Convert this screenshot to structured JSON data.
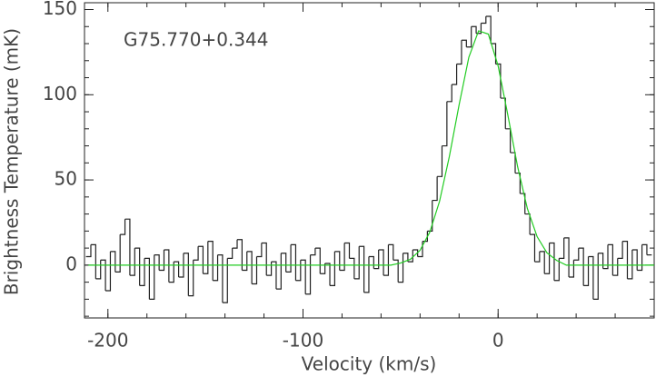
{
  "chart_data": {
    "type": "step",
    "xlabel": "Velocity (km/s)",
    "ylabel": "Brightness Temperature (mK)",
    "annotation": "G75.770+0.344",
    "xlim": [
      -212,
      80
    ],
    "ylim": [
      -31,
      154
    ],
    "xticks": [
      -200,
      -100,
      0
    ],
    "yticks": [
      0,
      50,
      100,
      150
    ],
    "xminorticks": [
      -200,
      -180,
      -160,
      -140,
      -120,
      -100,
      -80,
      -60,
      -40,
      -20,
      0,
      20,
      40,
      60,
      80
    ],
    "yminorticks": [
      -30,
      -20,
      -10,
      0,
      10,
      20,
      30,
      40,
      50,
      60,
      70,
      80,
      90,
      100,
      110,
      120,
      130,
      140,
      150
    ],
    "series": [
      {
        "color": "#222222",
        "x": [
          -210,
          -207.5,
          -205,
          -202.5,
          -200,
          -197.5,
          -195,
          -192.5,
          -190,
          -187.5,
          -185,
          -182.5,
          -180,
          -177.5,
          -175,
          -172.5,
          -170,
          -167.5,
          -165,
          -162.5,
          -160,
          -157.5,
          -155,
          -152.5,
          -150,
          -147.5,
          -145,
          -142.5,
          -140,
          -137.5,
          -135,
          -132.5,
          -130,
          -127.5,
          -125,
          -122.5,
          -120,
          -117.5,
          -115,
          -112.5,
          -110,
          -107.5,
          -105,
          -102.5,
          -100,
          -97.5,
          -95,
          -92.5,
          -90,
          -87.5,
          -85,
          -82.5,
          -80,
          -77.5,
          -75,
          -72.5,
          -70,
          -67.5,
          -65,
          -62.5,
          -60,
          -57.5,
          -55,
          -52.5,
          -50,
          -47.5,
          -45,
          -42.5,
          -40,
          -37.5,
          -35,
          -32.5,
          -30,
          -27.5,
          -25,
          -22.5,
          -20,
          -17.5,
          -15,
          -12.5,
          -10,
          -7.5,
          -5,
          -2.5,
          0,
          2.5,
          5,
          7.5,
          10,
          12.5,
          15,
          17.5,
          20,
          22.5,
          25,
          27.5,
          30,
          32.5,
          35,
          37.5,
          40,
          42.5,
          45,
          47.5,
          50,
          52.5,
          55,
          57.5,
          60,
          62.5,
          65,
          67.5,
          70,
          72.5,
          75,
          77.5
        ],
        "values": [
          5,
          12,
          -8,
          3,
          -15,
          8,
          -4,
          18,
          27,
          -6,
          10,
          -12,
          4,
          -20,
          6,
          -3,
          9,
          -10,
          2,
          -7,
          7,
          -18,
          3,
          11,
          -5,
          14,
          -9,
          6,
          -22,
          4,
          10,
          15,
          -3,
          8,
          -11,
          5,
          13,
          -6,
          2,
          -14,
          7,
          -4,
          12,
          -9,
          3,
          -17,
          6,
          10,
          -5,
          1,
          -12,
          8,
          -3,
          13,
          4,
          -8,
          11,
          -16,
          5,
          -2,
          9,
          -6,
          12,
          3,
          -10,
          7,
          2,
          9,
          5,
          14,
          20,
          38,
          52,
          70,
          96,
          106,
          118,
          132,
          128,
          140,
          136,
          142,
          146,
          130,
          118,
          98,
          80,
          66,
          54,
          42,
          30,
          18,
          2,
          8,
          -5,
          13,
          -9,
          4,
          16,
          -7,
          3,
          10,
          -12,
          5,
          -20,
          7,
          -2,
          12,
          -6,
          4,
          14,
          -8,
          9,
          -3,
          12,
          6
        ]
      },
      {
        "color": "#22cc22",
        "x": [
          -210,
          -205,
          -200,
          -195,
          -190,
          -185,
          -180,
          -175,
          -170,
          -165,
          -160,
          -155,
          -150,
          -145,
          -140,
          -135,
          -130,
          -125,
          -120,
          -115,
          -110,
          -105,
          -100,
          -95,
          -90,
          -85,
          -80,
          -75,
          -70,
          -65,
          -60,
          -55,
          -50,
          -45,
          -40,
          -35,
          -30,
          -25,
          -20,
          -15,
          -10,
          -5,
          0,
          5,
          10,
          15,
          20,
          25,
          30,
          35,
          40,
          45,
          50,
          55,
          60,
          65,
          70,
          75,
          80
        ],
        "values": [
          0,
          0,
          0,
          0,
          0,
          0,
          0,
          0,
          0,
          0,
          0,
          0,
          0,
          0,
          0,
          0,
          0,
          0,
          0,
          0,
          0,
          0,
          0,
          0,
          0,
          0,
          0,
          0,
          0,
          0,
          0,
          0,
          1.2,
          3.4,
          8.7,
          19.4,
          37.5,
          63.7,
          94,
          122,
          137.5,
          135.6,
          117,
          88,
          57.8,
          33.2,
          16.7,
          7.3,
          2.8,
          0,
          0,
          0,
          0,
          0,
          0,
          0,
          0,
          0,
          0
        ]
      }
    ]
  }
}
